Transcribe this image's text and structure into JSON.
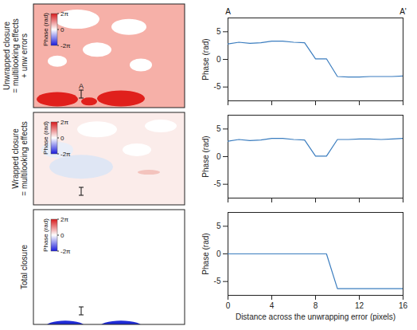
{
  "chart_data": [
    {
      "type": "line",
      "row_label": "Unwrapped closure = multilooking effects + unw errors",
      "annotations": [
        "A",
        "A'"
      ],
      "map": {
        "colorbar_label": "Phase (rad)",
        "colorbar_range": [
          -6.283,
          6.283
        ],
        "colorbar_ticks": [
          {
            "value": 6.283,
            "label": "2π"
          },
          0,
          {
            "value": -6.283,
            "label": "-2π"
          }
        ]
      },
      "x": [
        0,
        1,
        2,
        3,
        4,
        5,
        6,
        7,
        8,
        9,
        10,
        11,
        12,
        13,
        14,
        15,
        16
      ],
      "values": [
        2.8,
        3.1,
        2.9,
        3.0,
        3.3,
        3.3,
        3.1,
        3.0,
        0.1,
        0.1,
        -3.1,
        -3.2,
        -3.2,
        -3.1,
        -3.1,
        -3.1,
        -3.0
      ],
      "color": "#3b7dbf",
      "xlim": [
        0,
        16
      ],
      "xticks": [
        0,
        4,
        8,
        12,
        16
      ],
      "ylim": [
        -7.5,
        7.5
      ],
      "yticks": [
        -5,
        0,
        5
      ],
      "ylabel": "Phase (rad)",
      "tick_labels": "y"
    },
    {
      "type": "line",
      "row_label": "Wrapped closure = multilooking effects",
      "map": {
        "colorbar_label": "Phase (rad)",
        "colorbar_range": [
          -6.283,
          6.283
        ],
        "colorbar_ticks": [
          {
            "value": 6.283,
            "label": "2π"
          },
          0,
          {
            "value": -6.283,
            "label": "-2π"
          }
        ]
      },
      "x": [
        0,
        1,
        2,
        3,
        4,
        5,
        6,
        7,
        8,
        9,
        10,
        11,
        12,
        13,
        14,
        15,
        16
      ],
      "values": [
        2.8,
        3.1,
        2.9,
        3.0,
        3.3,
        3.3,
        3.1,
        3.0,
        0.1,
        0.1,
        3.1,
        3.1,
        3.2,
        3.2,
        3.1,
        3.2,
        3.3
      ],
      "color": "#3b7dbf",
      "xlim": [
        0,
        16
      ],
      "xticks": [
        0,
        4,
        8,
        12,
        16
      ],
      "ylim": [
        -7.5,
        7.5
      ],
      "yticks": [
        -5,
        0,
        5
      ],
      "ylabel": "Phase (rad)",
      "tick_labels": "y"
    },
    {
      "type": "line",
      "row_label": "Total closure",
      "map": {
        "colorbar_label": "Phase (rad)",
        "colorbar_range": [
          -6.283,
          6.283
        ],
        "colorbar_ticks": [
          {
            "value": 6.283,
            "label": "2π"
          },
          0,
          {
            "value": -6.283,
            "label": "-2π"
          }
        ]
      },
      "x": [
        0,
        1,
        2,
        3,
        4,
        5,
        6,
        7,
        8,
        9,
        10,
        11,
        12,
        13,
        14,
        15,
        16
      ],
      "values": [
        0,
        0,
        0,
        0,
        0,
        0,
        0,
        0,
        0,
        0,
        -6.3,
        -6.3,
        -6.3,
        -6.3,
        -6.3,
        -6.3,
        -6.3
      ],
      "color": "#3b7dbf",
      "xlim": [
        0,
        16
      ],
      "xticks": [
        0,
        4,
        8,
        12,
        16
      ],
      "ylim": [
        -7.5,
        7.5
      ],
      "yticks": [
        -5,
        0,
        5
      ],
      "ylabel": "Phase (rad)",
      "xlabel": "Distance across the unwrapping error (pixels)"
    }
  ]
}
